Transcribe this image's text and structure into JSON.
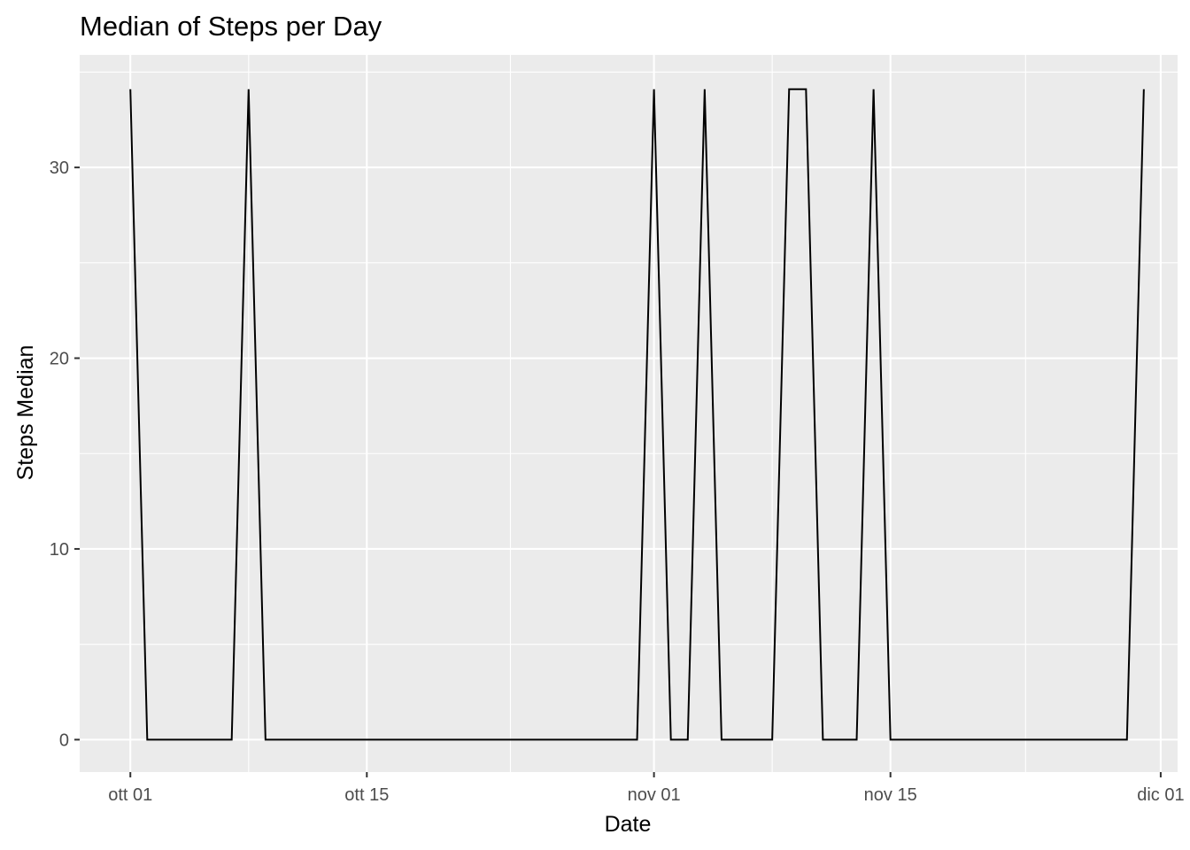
{
  "chart_data": {
    "type": "line",
    "title": "Median of Steps per Day",
    "xlabel": "Date",
    "ylabel": "Steps Median",
    "x_ticks": [
      {
        "date": "2012-10-01",
        "label": "ott 01"
      },
      {
        "date": "2012-10-15",
        "label": "ott 15"
      },
      {
        "date": "2012-11-01",
        "label": "nov 01"
      },
      {
        "date": "2012-11-15",
        "label": "nov 15"
      },
      {
        "date": "2012-12-01",
        "label": "dic 01"
      }
    ],
    "y_ticks": [
      0,
      10,
      20,
      30
    ],
    "xlim": [
      "2012-09-28",
      "2012-12-02"
    ],
    "ylim": [
      -1.7,
      35.9
    ],
    "grid": true,
    "legend": "none",
    "x": [
      "2012-10-01",
      "2012-10-02",
      "2012-10-03",
      "2012-10-04",
      "2012-10-05",
      "2012-10-06",
      "2012-10-07",
      "2012-10-08",
      "2012-10-09",
      "2012-10-10",
      "2012-10-11",
      "2012-10-12",
      "2012-10-13",
      "2012-10-14",
      "2012-10-15",
      "2012-10-16",
      "2012-10-17",
      "2012-10-18",
      "2012-10-19",
      "2012-10-20",
      "2012-10-21",
      "2012-10-22",
      "2012-10-23",
      "2012-10-24",
      "2012-10-25",
      "2012-10-26",
      "2012-10-27",
      "2012-10-28",
      "2012-10-29",
      "2012-10-30",
      "2012-10-31",
      "2012-11-01",
      "2012-11-02",
      "2012-11-03",
      "2012-11-04",
      "2012-11-05",
      "2012-11-06",
      "2012-11-07",
      "2012-11-08",
      "2012-11-09",
      "2012-11-10",
      "2012-11-11",
      "2012-11-12",
      "2012-11-13",
      "2012-11-14",
      "2012-11-15",
      "2012-11-16",
      "2012-11-17",
      "2012-11-18",
      "2012-11-19",
      "2012-11-20",
      "2012-11-21",
      "2012-11-22",
      "2012-11-23",
      "2012-11-24",
      "2012-11-25",
      "2012-11-26",
      "2012-11-27",
      "2012-11-28",
      "2012-11-29",
      "2012-11-30"
    ],
    "values": [
      34.1,
      0,
      0,
      0,
      0,
      0,
      0,
      34.1,
      0,
      0,
      0,
      0,
      0,
      0,
      0,
      0,
      0,
      0,
      0,
      0,
      0,
      0,
      0,
      0,
      0,
      0,
      0,
      0,
      0,
      0,
      0,
      34.1,
      0,
      0,
      34.1,
      0,
      0,
      0,
      0,
      34.1,
      34.1,
      0,
      0,
      0,
      34.1,
      0,
      0,
      0,
      0,
      0,
      0,
      0,
      0,
      0,
      0,
      0,
      0,
      0,
      0,
      0,
      34.1
    ]
  }
}
